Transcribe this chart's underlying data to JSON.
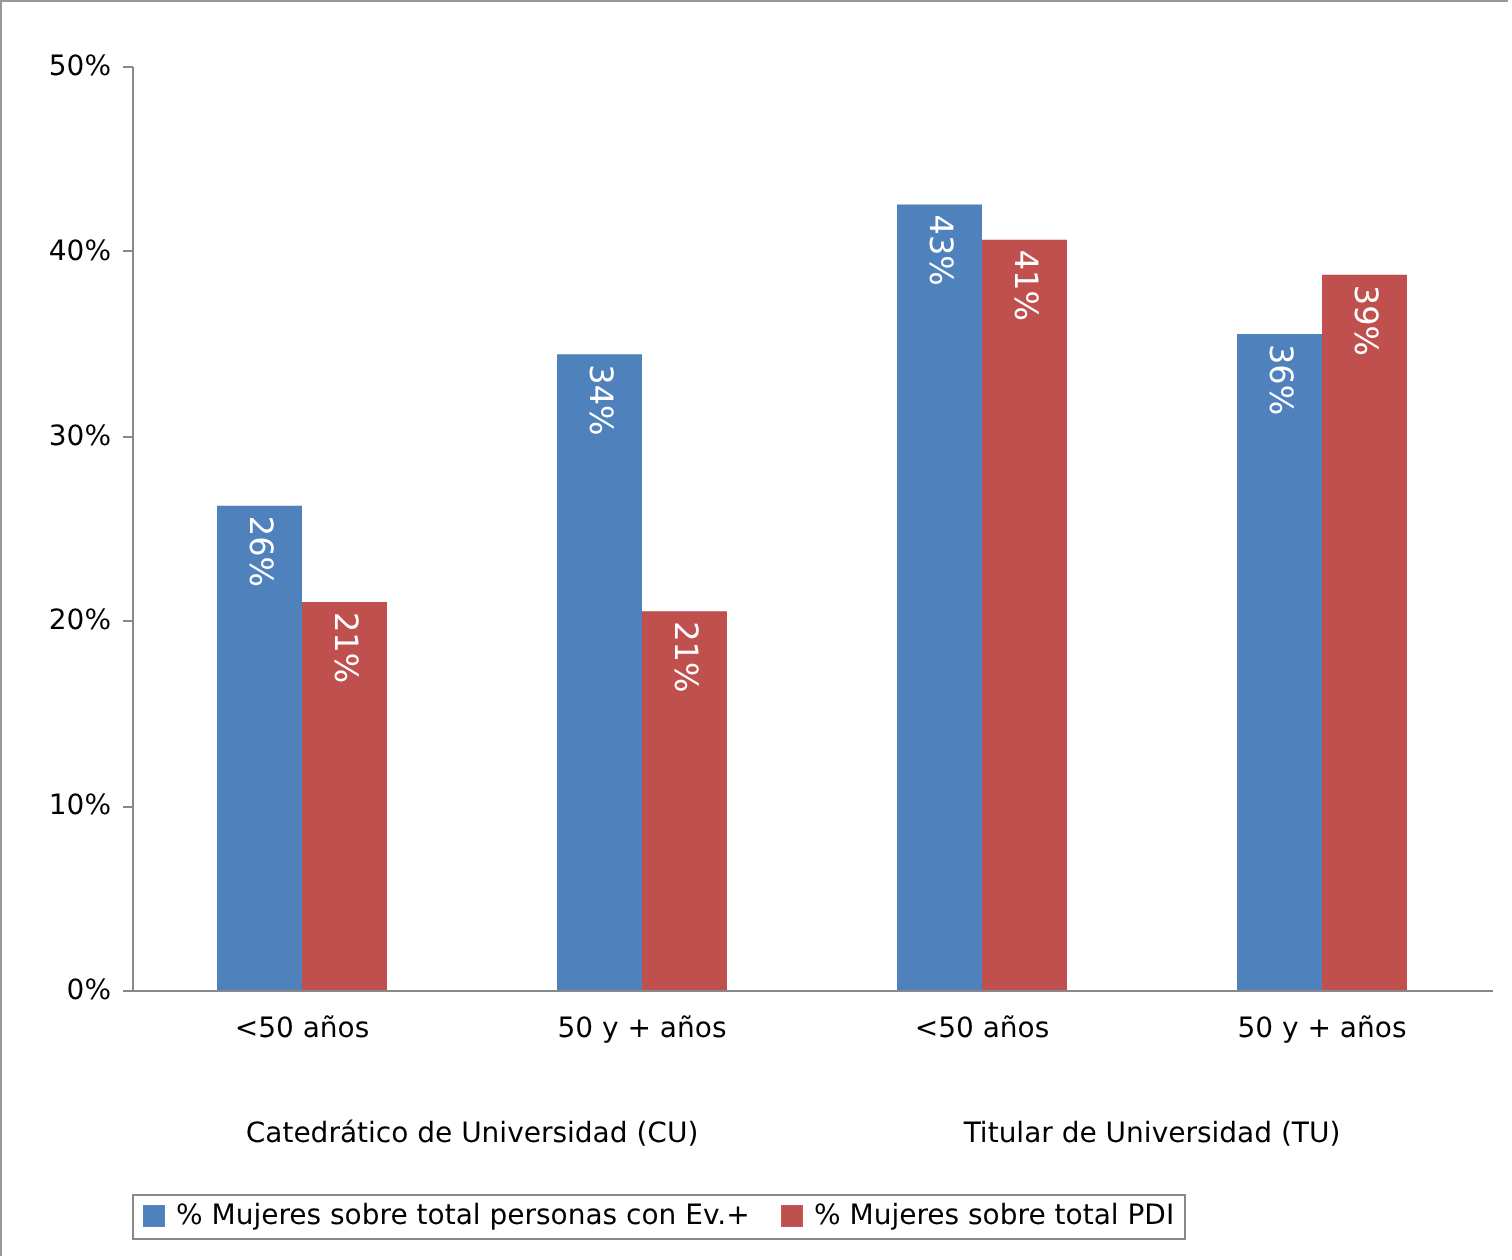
{
  "chart_data": {
    "type": "bar",
    "categories": [
      "<50 años",
      "50 y + años",
      "<50 años",
      "50 y + años"
    ],
    "series": [
      {
        "name": "% Mujeres sobre total personas con Ev.+",
        "color": "#4f81bd",
        "values": [
          26.2,
          34.4,
          42.5,
          35.5
        ],
        "value_labels": [
          "26%",
          "34%",
          "43%",
          "36%"
        ]
      },
      {
        "name": "% Mujeres sobre total PDI",
        "color": "#c0504d",
        "values": [
          21.0,
          20.5,
          40.6,
          38.7
        ],
        "value_labels": [
          "21%",
          "21%",
          "41%",
          "39%"
        ]
      }
    ],
    "ylim": [
      0,
      50
    ],
    "yticks": [
      {
        "value": 0,
        "label": "0%"
      },
      {
        "value": 10,
        "label": "10%"
      },
      {
        "value": 20,
        "label": "20%"
      },
      {
        "value": 30,
        "label": "30%"
      },
      {
        "value": 40,
        "label": "40%"
      },
      {
        "value": 50,
        "label": "50%"
      }
    ],
    "annotations": [
      "Catedrático de Universidad (CU)",
      "Titular de Universidad (TU)"
    ],
    "grid": false,
    "legend": "bottom"
  }
}
